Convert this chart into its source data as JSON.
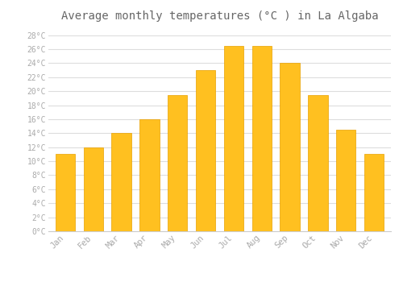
{
  "title": "Average monthly temperatures (°C ) in La Algaba",
  "months": [
    "Jan",
    "Feb",
    "Mar",
    "Apr",
    "May",
    "Jun",
    "Jul",
    "Aug",
    "Sep",
    "Oct",
    "Nov",
    "Dec"
  ],
  "values": [
    11,
    12,
    14,
    16,
    19.5,
    23,
    26.5,
    26.5,
    24,
    19.5,
    14.5,
    11
  ],
  "bar_color": "#FFC020",
  "bar_edge_color": "#E8A000",
  "background_color": "#FFFFFF",
  "plot_bg_color": "#FFFFFF",
  "grid_color": "#DDDDDD",
  "title_fontsize": 10,
  "tick_label_color": "#AAAAAA",
  "title_color": "#666666",
  "ylim": [
    0,
    29
  ],
  "ytick_step": 2,
  "font_family": "monospace"
}
